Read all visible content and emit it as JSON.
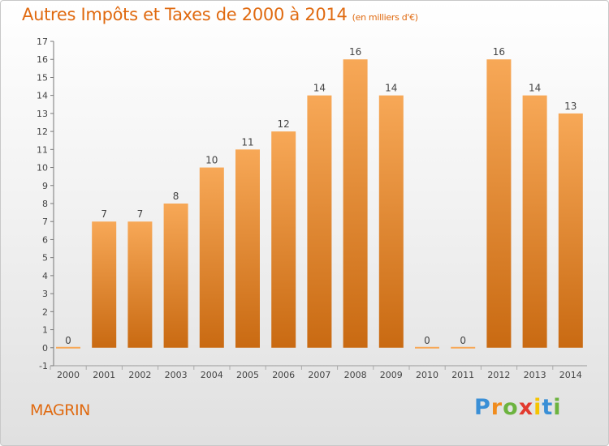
{
  "title": "Autres Impôts et Taxes de 2000 à 2014",
  "subtitle": "(en milliers d'€)",
  "town": "MAGRIN",
  "logo": {
    "letters": [
      "P",
      "r",
      "o",
      "x",
      "i",
      "t",
      "i"
    ],
    "colors": [
      "#3a8fd6",
      "#f08c1e",
      "#6cb33f",
      "#e23a2e",
      "#f5c400",
      "#3a8fd6",
      "#6cb33f"
    ]
  },
  "colors": {
    "title": "#e06a10",
    "bar_top": "#f7a857",
    "bar_bottom": "#c96a12",
    "text": "#444444"
  },
  "chart_data": {
    "type": "bar",
    "title": "Autres Impôts et Taxes de 2000 à 2014",
    "subtitle": "(en milliers d'€)",
    "categories": [
      "2000",
      "2001",
      "2002",
      "2003",
      "2004",
      "2005",
      "2006",
      "2007",
      "2008",
      "2009",
      "2010",
      "2011",
      "2012",
      "2013",
      "2014"
    ],
    "values": [
      0,
      7,
      7,
      8,
      10,
      11,
      12,
      14,
      16,
      14,
      0,
      0,
      16,
      14,
      13
    ],
    "data_labels": [
      "0",
      "7",
      "7",
      "8",
      "10",
      "11",
      "12",
      "14",
      "16",
      "14",
      "0",
      "0",
      "16",
      "14",
      "13"
    ],
    "yticks": [
      "-1",
      "0",
      "1",
      "2",
      "3",
      "4",
      "5",
      "6",
      "7",
      "8",
      "9",
      "10",
      "11",
      "12",
      "13",
      "14",
      "15",
      "16",
      "17"
    ],
    "ylim": [
      -1,
      17
    ],
    "xlabel": "",
    "ylabel": "",
    "grid": false
  }
}
